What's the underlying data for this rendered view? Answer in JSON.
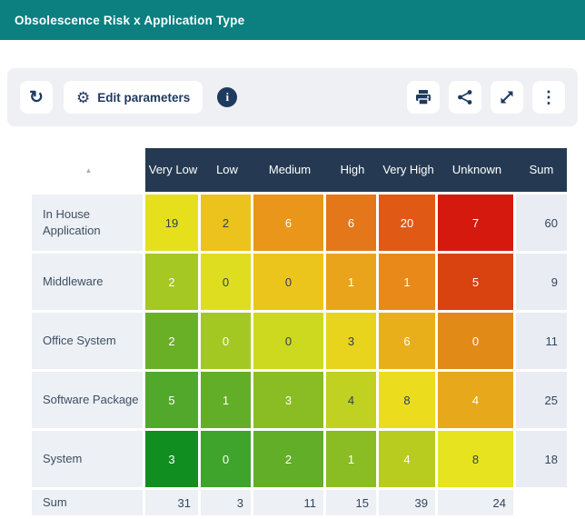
{
  "title_bar": {
    "title": "Obsolescence Risk x Application Type"
  },
  "toolbar": {
    "edit_parameters_label": "Edit parameters"
  },
  "icons": {
    "refresh_glyph": "↻",
    "gear_glyph": "⚙",
    "info_glyph": "i",
    "more_glyph": "⋮",
    "sort_ascending_glyph": "▲"
  },
  "colors": {
    "titlebar_teal": "#0c7f80",
    "header_navy": "#253a52",
    "toolbar_bg": "#eef0f4",
    "label_bg": "#edf0f5",
    "sum_col_bg": "#e9ecf3",
    "dark_text": "#2e4156",
    "icon_navy": "#1e3a5f",
    "white_text": "#ffffff"
  },
  "chart_data": {
    "type": "heatmap",
    "title": "Obsolescence Risk x Application Type",
    "xlabel": "Obsolescence Risk",
    "ylabel": "Application Type",
    "columns": [
      "Very Low",
      "Low",
      "Medium",
      "High",
      "Very High",
      "Unknown"
    ],
    "rows": [
      "In House Application",
      "Middleware",
      "Office System",
      "Software Package",
      "System"
    ],
    "values": [
      [
        19,
        2,
        6,
        6,
        20,
        7
      ],
      [
        2,
        0,
        0,
        1,
        1,
        5
      ],
      [
        2,
        0,
        0,
        3,
        6,
        0
      ],
      [
        5,
        1,
        3,
        4,
        8,
        4
      ],
      [
        3,
        0,
        2,
        1,
        4,
        8
      ]
    ],
    "row_sums": [
      60,
      9,
      11,
      25,
      18
    ],
    "col_sums": [
      31,
      3,
      11,
      15,
      39,
      24
    ],
    "sum_label": "Sum",
    "cell_colors": [
      [
        "#e5e01b",
        "#ecc31c",
        "#e9961b",
        "#e4771a",
        "#e05a15",
        "#d6190e"
      ],
      [
        "#a5c822",
        "#dfdd1f",
        "#ecc51c",
        "#eaa41b",
        "#e8891a",
        "#d8430f"
      ],
      [
        "#6ab027",
        "#a3c822",
        "#cdd91f",
        "#e8d41d",
        "#e9af1b",
        "#e28a17"
      ],
      [
        "#52a82a",
        "#62ae28",
        "#8abc24",
        "#c0d121",
        "#ecdc1e",
        "#e8a81c"
      ],
      [
        "#118e20",
        "#3fa42b",
        "#62ae28",
        "#8abc24",
        "#b7cc1e",
        "#e7e41f"
      ]
    ],
    "cell_text": [
      [
        "D",
        "D",
        "W",
        "W",
        "W",
        "W"
      ],
      [
        "W",
        "D",
        "D",
        "W",
        "W",
        "W"
      ],
      [
        "W",
        "W",
        "D",
        "D",
        "W",
        "W"
      ],
      [
        "W",
        "W",
        "W",
        "D",
        "D",
        "W"
      ],
      [
        "W",
        "W",
        "W",
        "W",
        "W",
        "D"
      ]
    ]
  }
}
